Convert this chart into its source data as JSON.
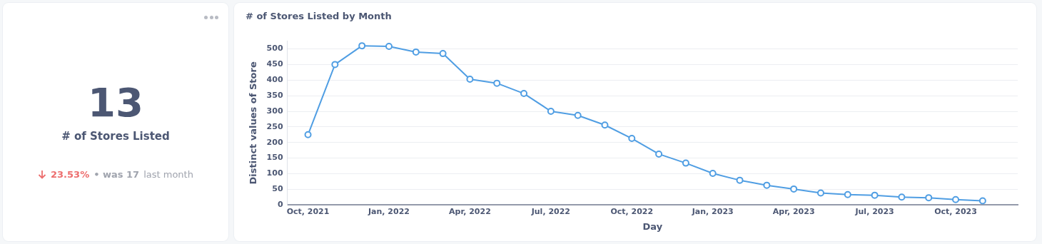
{
  "chart_data": [
    {
      "type": "other",
      "title": "# of Stores Listed",
      "annotations": [
        "13",
        "23.53%",
        "• was 17",
        "last month"
      ]
    },
    {
      "type": "line",
      "title": "# of Stores Listed by Month",
      "xlabel": "Day",
      "ylabel": "Distinct values of Store",
      "x": [
        "2021-10",
        "2021-11",
        "2021-12",
        "2022-01",
        "2022-02",
        "2022-03",
        "2022-04",
        "2022-05",
        "2022-06",
        "2022-07",
        "2022-08",
        "2022-09",
        "2022-10",
        "2022-11",
        "2022-12",
        "2023-01",
        "2023-02",
        "2023-03",
        "2023-04",
        "2023-05",
        "2023-06",
        "2023-07",
        "2023-08",
        "2023-09",
        "2023-10",
        "2023-11"
      ],
      "series": [
        {
          "color": "#509ee3",
          "values": [
            225,
            450,
            510,
            508,
            490,
            485,
            403,
            390,
            357,
            300,
            287,
            256,
            213,
            163,
            134,
            101,
            79,
            63,
            51,
            38,
            33,
            31,
            25,
            23,
            17,
            13
          ]
        }
      ],
      "xlim": [
        "2021-09-08",
        "2023-12-10"
      ],
      "xticks": [
        {
          "value": "2021-10",
          "label": "Oct, 2021"
        },
        {
          "value": "2022-01",
          "label": "Jan, 2022"
        },
        {
          "value": "2022-04",
          "label": "Apr, 2022"
        },
        {
          "value": "2022-07",
          "label": "Jul, 2022"
        },
        {
          "value": "2022-10",
          "label": "Oct, 2022"
        },
        {
          "value": "2023-01",
          "label": "Jan, 2023"
        },
        {
          "value": "2023-04",
          "label": "Apr, 2023"
        },
        {
          "value": "2023-07",
          "label": "Jul, 2023"
        },
        {
          "value": "2023-10",
          "label": "Oct, 2023"
        }
      ],
      "ylim": [
        0,
        525
      ],
      "yticks": [
        0,
        50,
        100,
        150,
        200,
        250,
        300,
        350,
        400,
        450,
        500
      ],
      "grid": "y",
      "marker": "circle",
      "line_style": "solid"
    }
  ]
}
